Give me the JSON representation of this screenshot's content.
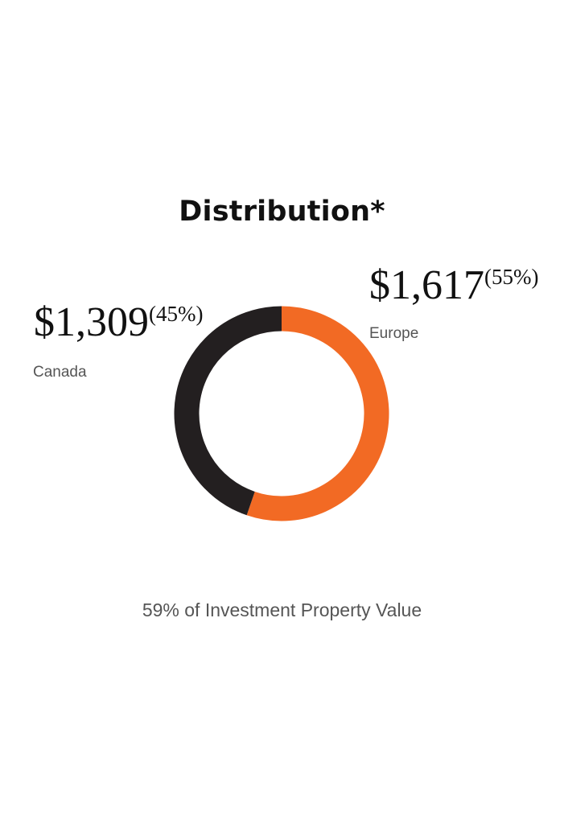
{
  "chart_data": {
    "type": "pie",
    "title": "Distribution*",
    "categories": [
      "Europe",
      "Canada"
    ],
    "values": [
      1617,
      1309
    ],
    "percent_labels": [
      "(55%)",
      "(45%)"
    ],
    "value_labels": [
      "$1,617",
      "$1,309"
    ],
    "colors": [
      "#F26A24",
      "#231F20"
    ],
    "donut": true,
    "caption": "59% of Investment Property Value"
  }
}
